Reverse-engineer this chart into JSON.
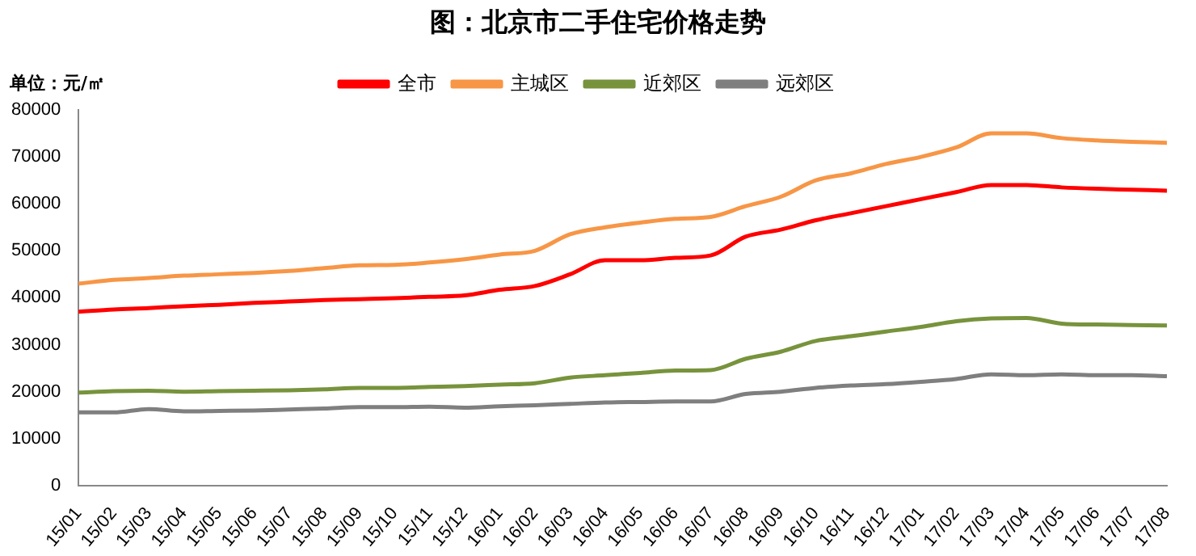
{
  "chart_data": {
    "type": "line",
    "title": "图：北京市二手住宅价格走势",
    "ylabel": "单位：元/㎡",
    "categories": [
      "15/01",
      "15/02",
      "15/03",
      "15/04",
      "15/05",
      "15/06",
      "15/07",
      "15/08",
      "15/09",
      "15/10",
      "15/11",
      "15/12",
      "16/01",
      "16/02",
      "16/03",
      "16/04",
      "16/05",
      "16/06",
      "16/07",
      "16/08",
      "16/09",
      "16/10",
      "16/11",
      "16/12",
      "17/01",
      "17/02",
      "17/03",
      "17/04",
      "17/05",
      "17/06",
      "17/07",
      "17/08"
    ],
    "series": [
      {
        "name": "全市",
        "color": "#ff0000",
        "values": [
          37000,
          37500,
          37800,
          38200,
          38500,
          38900,
          39200,
          39500,
          39700,
          39900,
          40200,
          40500,
          41700,
          42500,
          45000,
          48000,
          48000,
          48500,
          49000,
          53000,
          54500,
          56500,
          58000,
          59500,
          61000,
          62500,
          64000,
          64000,
          63500,
          63200,
          63000,
          62800
        ]
      },
      {
        "name": "主城区",
        "color": "#f79646",
        "values": [
          43000,
          43800,
          44200,
          44700,
          45000,
          45300,
          45700,
          46300,
          46900,
          47000,
          47500,
          48200,
          49200,
          50000,
          53500,
          55000,
          56000,
          56800,
          57200,
          59500,
          61500,
          65000,
          66500,
          68500,
          70000,
          72000,
          75000,
          75000,
          74000,
          73500,
          73200,
          73000
        ]
      },
      {
        "name": "近郊区",
        "color": "#77933c",
        "values": [
          19800,
          20100,
          20200,
          20000,
          20100,
          20200,
          20300,
          20500,
          20800,
          20800,
          21000,
          21200,
          21500,
          21800,
          23000,
          23500,
          24000,
          24500,
          24600,
          27000,
          28500,
          30800,
          31800,
          32800,
          33800,
          35000,
          35600,
          35700,
          34500,
          34300,
          34200,
          34100
        ]
      },
      {
        "name": "远郊区",
        "color": "#7f7f7f",
        "values": [
          15600,
          15600,
          16300,
          15800,
          15900,
          16000,
          16200,
          16400,
          16700,
          16700,
          16800,
          16600,
          16900,
          17100,
          17400,
          17700,
          17800,
          17900,
          17900,
          19500,
          20000,
          20800,
          21300,
          21600,
          22100,
          22700,
          23700,
          23500,
          23700,
          23500,
          23500,
          23300
        ]
      }
    ],
    "ylim": [
      0,
      80000
    ],
    "yticks": [
      0,
      10000,
      20000,
      30000,
      40000,
      50000,
      60000,
      70000,
      80000
    ],
    "grid": false,
    "legend": "top",
    "marker": "none",
    "line_style": "solid"
  }
}
